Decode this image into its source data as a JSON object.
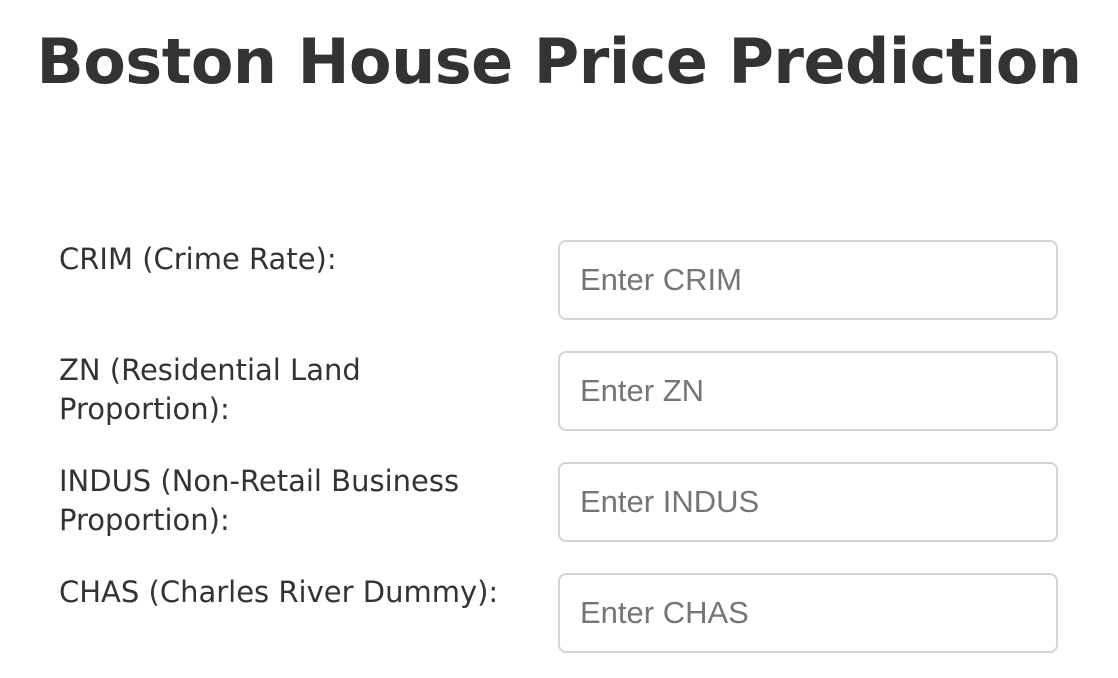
{
  "page": {
    "title": "Boston House Price Prediction"
  },
  "form": {
    "fields": [
      {
        "label": "CRIM (Crime Rate):",
        "placeholder": "Enter CRIM",
        "value": ""
      },
      {
        "label": "ZN (Residential Land Proportion):",
        "placeholder": "Enter ZN",
        "value": ""
      },
      {
        "label": "INDUS (Non-Retail Business Proportion):",
        "placeholder": "Enter INDUS",
        "value": ""
      },
      {
        "label": "CHAS (Charles River Dummy):",
        "placeholder": "Enter CHAS",
        "value": ""
      }
    ]
  },
  "colors": {
    "text": "#333333",
    "placeholder": "#757575",
    "input_border": "#d4d4d4",
    "background": "#ffffff"
  }
}
